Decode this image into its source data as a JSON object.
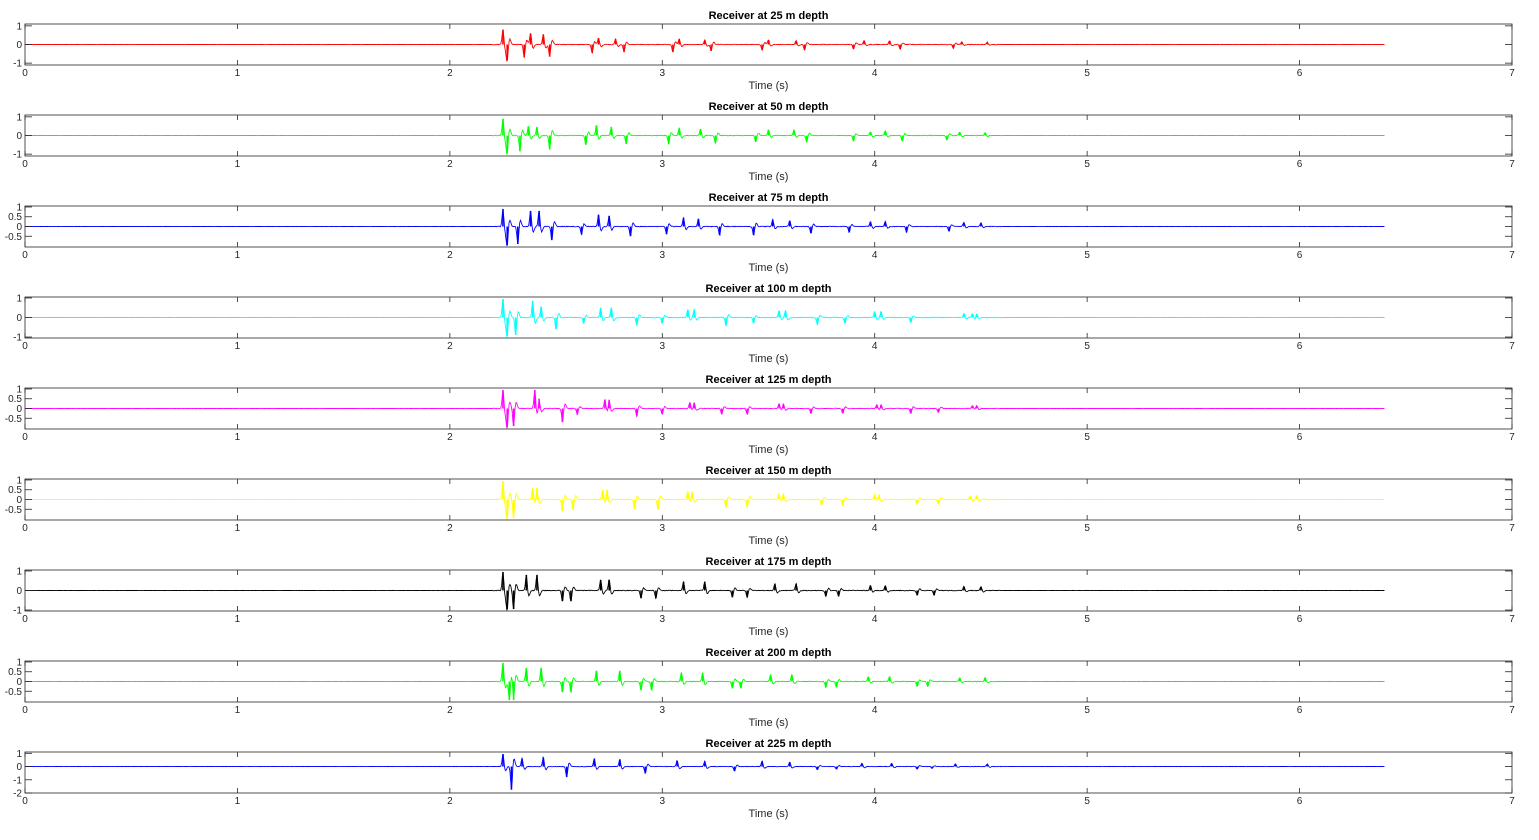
{
  "figure": {
    "background": "#ffffff",
    "axis_color": "#262626"
  },
  "chart_data": [
    {
      "type": "line",
      "title": "Receiver at 25 m depth",
      "xlabel": "Time (s)",
      "ylabel": "",
      "xlim": [
        0,
        7
      ],
      "ylim": [
        -1.1,
        1.1
      ],
      "xticks": [
        0,
        1,
        2,
        3,
        4,
        5,
        6,
        7
      ],
      "yticks": [
        -1,
        0,
        1
      ],
      "color": "#ff0000",
      "trace_end": 6.4,
      "grid": false,
      "series": [
        {
          "x": [
            2.25,
            2.27,
            2.35,
            2.38,
            2.44,
            2.47,
            2.67,
            2.7,
            2.78,
            2.82,
            3.05,
            3.08,
            3.2,
            3.23,
            3.47,
            3.5,
            3.63,
            3.67,
            3.9,
            3.95,
            4.07,
            4.12,
            4.37,
            4.41,
            4.53
          ],
          "y": [
            0.8,
            -0.85,
            -0.7,
            0.6,
            0.55,
            -0.65,
            -0.45,
            0.35,
            0.3,
            -0.4,
            -0.4,
            0.3,
            0.25,
            -0.35,
            -0.3,
            0.25,
            0.2,
            -0.3,
            -0.25,
            0.2,
            0.2,
            -0.25,
            -0.2,
            0.15,
            0.12
          ]
        }
      ]
    },
    {
      "type": "line",
      "title": "Receiver at 50 m depth",
      "xlabel": "Time (s)",
      "ylabel": "",
      "xlim": [
        0,
        7
      ],
      "ylim": [
        -1.1,
        1.1
      ],
      "xticks": [
        0,
        1,
        2,
        3,
        4,
        5,
        6,
        7
      ],
      "yticks": [
        -1,
        0,
        1
      ],
      "color": "#00ff00",
      "trace_end": 6.4,
      "grid": false,
      "series": [
        {
          "x": [
            2.25,
            2.27,
            2.33,
            2.37,
            2.41,
            2.47,
            2.64,
            2.69,
            2.76,
            2.83,
            3.03,
            3.08,
            3.18,
            3.25,
            3.44,
            3.5,
            3.62,
            3.68,
            3.9,
            3.98,
            4.05,
            4.13,
            4.34,
            4.4,
            4.52
          ],
          "y": [
            0.9,
            -0.95,
            -0.85,
            0.5,
            0.45,
            -0.75,
            -0.5,
            0.55,
            0.45,
            -0.45,
            -0.45,
            0.4,
            0.35,
            -0.4,
            -0.35,
            0.3,
            0.3,
            -0.35,
            -0.3,
            0.2,
            0.25,
            -0.3,
            -0.25,
            0.18,
            0.15
          ]
        }
      ]
    },
    {
      "type": "line",
      "title": "Receiver at 75 m depth",
      "xlabel": "Time (s)",
      "ylabel": "",
      "xlim": [
        0,
        7
      ],
      "ylim": [
        -1.05,
        1.05
      ],
      "xticks": [
        0,
        1,
        2,
        3,
        4,
        5,
        6,
        7
      ],
      "yticks": [
        -0.5,
        0,
        0.5,
        1
      ],
      "color": "#0000ff",
      "trace_end": 6.4,
      "grid": false,
      "series": [
        {
          "x": [
            2.25,
            2.27,
            2.32,
            2.38,
            2.42,
            2.48,
            2.62,
            2.7,
            2.75,
            2.85,
            3.02,
            3.1,
            3.17,
            3.27,
            3.43,
            3.52,
            3.6,
            3.7,
            3.88,
            3.98,
            4.05,
            4.15,
            4.35,
            4.42,
            4.5
          ],
          "y": [
            0.9,
            -0.95,
            -0.9,
            0.8,
            0.8,
            -0.7,
            -0.4,
            0.6,
            0.55,
            -0.5,
            -0.4,
            0.45,
            0.4,
            -0.45,
            -0.45,
            0.35,
            0.3,
            -0.35,
            -0.3,
            0.25,
            0.25,
            -0.3,
            -0.25,
            0.2,
            0.2
          ]
        }
      ]
    },
    {
      "type": "line",
      "title": "Receiver at 100 m depth",
      "xlabel": "Time (s)",
      "ylabel": "",
      "xlim": [
        0,
        7
      ],
      "ylim": [
        -1.05,
        1.05
      ],
      "xticks": [
        0,
        1,
        2,
        3,
        4,
        5,
        6,
        7
      ],
      "yticks": [
        -1,
        0,
        1
      ],
      "color": "#00ffff",
      "trace_end": 6.4,
      "grid": false,
      "series": [
        {
          "x": [
            2.25,
            2.27,
            2.31,
            2.39,
            2.43,
            2.5,
            2.63,
            2.71,
            2.76,
            2.88,
            3.0,
            3.12,
            3.15,
            3.3,
            3.43,
            3.55,
            3.58,
            3.73,
            3.86,
            4.0,
            4.03,
            4.17,
            4.42,
            4.46,
            4.48
          ],
          "y": [
            0.95,
            -0.95,
            -0.9,
            0.85,
            0.55,
            -0.6,
            -0.3,
            0.5,
            0.5,
            -0.4,
            -0.3,
            0.4,
            0.4,
            -0.4,
            -0.3,
            0.35,
            0.35,
            -0.35,
            -0.3,
            0.3,
            0.3,
            -0.25,
            0.2,
            0.2,
            0.18
          ]
        }
      ]
    },
    {
      "type": "line",
      "title": "Receiver at 125 m depth",
      "xlabel": "Time (s)",
      "ylabel": "",
      "xlim": [
        0,
        7
      ],
      "ylim": [
        -1.05,
        1.05
      ],
      "xticks": [
        0,
        1,
        2,
        3,
        4,
        5,
        6,
        7
      ],
      "yticks": [
        -0.5,
        0,
        0.5,
        1
      ],
      "color": "#ff00ff",
      "trace_end": 6.4,
      "grid": false,
      "series": [
        {
          "x": [
            2.25,
            2.27,
            2.3,
            2.4,
            2.42,
            2.53,
            2.6,
            2.73,
            2.75,
            2.88,
            3.0,
            3.13,
            3.15,
            3.28,
            3.4,
            3.55,
            3.57,
            3.7,
            3.85,
            4.01,
            4.03,
            4.17,
            4.3,
            4.46,
            4.48
          ],
          "y": [
            0.95,
            -0.95,
            -0.9,
            0.95,
            0.5,
            -0.7,
            -0.3,
            0.45,
            0.45,
            -0.4,
            -0.3,
            0.3,
            0.3,
            -0.3,
            -0.3,
            0.25,
            0.25,
            -0.25,
            -0.25,
            0.2,
            0.2,
            -0.25,
            -0.2,
            0.15,
            0.15
          ]
        }
      ]
    },
    {
      "type": "line",
      "title": "Receiver at 150 m depth",
      "xlabel": "Time (s)",
      "ylabel": "",
      "xlim": [
        0,
        7
      ],
      "ylim": [
        -1.05,
        1.05
      ],
      "xticks": [
        0,
        1,
        2,
        3,
        4,
        5,
        6,
        7
      ],
      "yticks": [
        -0.5,
        0,
        0.5,
        1
      ],
      "color": "#ffff00",
      "trace_end": 6.4,
      "grid": false,
      "series": [
        {
          "x": [
            2.25,
            2.27,
            2.3,
            2.39,
            2.41,
            2.53,
            2.58,
            2.72,
            2.74,
            2.87,
            2.98,
            3.12,
            3.14,
            3.3,
            3.4,
            3.55,
            3.57,
            3.75,
            3.85,
            4.0,
            4.02,
            4.2,
            4.3,
            4.45,
            4.48
          ],
          "y": [
            0.95,
            -0.95,
            -0.95,
            0.6,
            0.6,
            -0.6,
            -0.55,
            0.5,
            0.5,
            -0.5,
            -0.5,
            0.4,
            0.4,
            -0.4,
            -0.4,
            0.3,
            0.3,
            -0.3,
            -0.3,
            0.25,
            0.25,
            -0.25,
            -0.25,
            0.2,
            0.2
          ]
        }
      ]
    },
    {
      "type": "line",
      "title": "Receiver at 175 m depth",
      "xlabel": "Time (s)",
      "ylabel": "",
      "xlim": [
        0,
        7
      ],
      "ylim": [
        -1.05,
        1.05
      ],
      "xticks": [
        0,
        1,
        2,
        3,
        4,
        5,
        6,
        7
      ],
      "yticks": [
        -1,
        0,
        1
      ],
      "color": "#000000",
      "trace_end": 6.4,
      "grid": false,
      "series": [
        {
          "x": [
            2.25,
            2.27,
            2.3,
            2.36,
            2.41,
            2.53,
            2.57,
            2.71,
            2.75,
            2.9,
            2.97,
            3.1,
            3.2,
            3.33,
            3.4,
            3.53,
            3.63,
            3.77,
            3.83,
            3.98,
            4.05,
            4.2,
            4.28,
            4.42,
            4.5
          ],
          "y": [
            0.95,
            -0.95,
            -0.95,
            0.8,
            0.8,
            -0.55,
            -0.55,
            0.55,
            0.55,
            -0.4,
            -0.4,
            0.45,
            0.45,
            -0.35,
            -0.35,
            0.35,
            0.35,
            -0.3,
            -0.3,
            0.25,
            0.25,
            -0.25,
            -0.25,
            0.2,
            0.2
          ]
        }
      ]
    },
    {
      "type": "line",
      "title": "Receiver at 200 m depth",
      "xlabel": "Time (s)",
      "ylabel": "",
      "xlim": [
        0,
        7
      ],
      "ylim": [
        -1.05,
        1.05
      ],
      "xticks": [
        0,
        1,
        2,
        3,
        4,
        5,
        6,
        7
      ],
      "yticks": [
        -0.5,
        0,
        0.5,
        1
      ],
      "color": "#00ff00",
      "trace_end": 6.4,
      "grid": false,
      "series": [
        {
          "x": [
            2.25,
            2.28,
            2.3,
            2.36,
            2.43,
            2.53,
            2.57,
            2.69,
            2.8,
            2.9,
            2.95,
            3.09,
            3.19,
            3.33,
            3.37,
            3.51,
            3.61,
            3.77,
            3.82,
            3.97,
            4.07,
            4.2,
            4.25,
            4.4,
            4.52
          ],
          "y": [
            0.95,
            -0.95,
            -0.95,
            0.7,
            0.7,
            -0.55,
            -0.55,
            0.55,
            0.55,
            -0.45,
            -0.45,
            0.45,
            0.45,
            -0.35,
            -0.35,
            0.35,
            0.35,
            -0.3,
            -0.3,
            0.25,
            0.25,
            -0.25,
            -0.25,
            0.2,
            0.2
          ]
        }
      ]
    },
    {
      "type": "line",
      "title": "Receiver at 225 m depth",
      "xlabel": "Time (s)",
      "ylabel": "",
      "xlim": [
        0,
        7
      ],
      "ylim": [
        -2,
        1.1
      ],
      "xticks": [
        0,
        1,
        2,
        3,
        4,
        5,
        6,
        7
      ],
      "yticks": [
        -2,
        -1,
        0,
        1
      ],
      "color": "#0000ff",
      "trace_end": 6.4,
      "grid": false,
      "series": [
        {
          "x": [
            2.25,
            2.29,
            2.34,
            2.44,
            2.55,
            2.68,
            2.8,
            2.92,
            3.07,
            3.2,
            3.34,
            3.47,
            3.6,
            3.73,
            3.82,
            3.94,
            4.08,
            4.2,
            4.27,
            4.38,
            4.53
          ],
          "y": [
            0.95,
            -1.75,
            0.6,
            0.7,
            -0.8,
            0.6,
            0.55,
            -0.5,
            0.45,
            0.4,
            -0.35,
            0.4,
            0.35,
            -0.25,
            -0.2,
            0.25,
            0.25,
            -0.2,
            -0.15,
            0.2,
            0.18
          ]
        }
      ]
    }
  ]
}
